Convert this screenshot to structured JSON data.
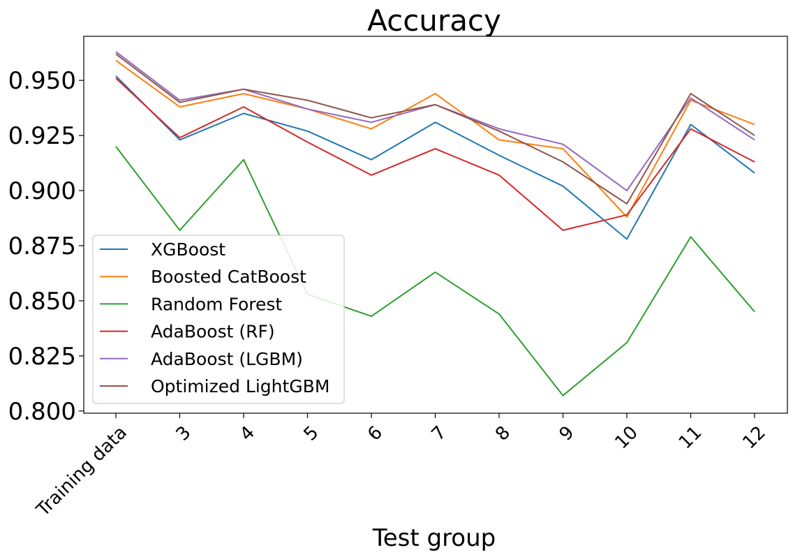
{
  "chart_data": {
    "type": "line",
    "title": "Accuracy",
    "xlabel": "Test group",
    "ylabel": "",
    "ylim": [
      0.799,
      0.97
    ],
    "yticks": [
      "0.800",
      "0.825",
      "0.850",
      "0.875",
      "0.900",
      "0.925",
      "0.950"
    ],
    "categories": [
      "Training data",
      "3",
      "4",
      "5",
      "6",
      "7",
      "8",
      "9",
      "10",
      "11",
      "12"
    ],
    "grid": false,
    "legend_position": "lower-left",
    "series": [
      {
        "name": "XGBoost",
        "color": "#1f77b4",
        "values": [
          0.952,
          0.923,
          0.935,
          0.927,
          0.914,
          0.931,
          0.916,
          0.902,
          0.878,
          0.93,
          0.908
        ]
      },
      {
        "name": "Boosted CatBoost",
        "color": "#ff7f0e",
        "values": [
          0.959,
          0.938,
          0.944,
          0.937,
          0.928,
          0.944,
          0.923,
          0.919,
          0.888,
          0.941,
          0.93
        ]
      },
      {
        "name": "Random Forest",
        "color": "#2ca02c",
        "values": [
          0.92,
          0.882,
          0.914,
          0.853,
          0.843,
          0.863,
          0.844,
          0.807,
          0.831,
          0.879,
          0.845
        ]
      },
      {
        "name": "AdaBoost (RF)",
        "color": "#d62728",
        "values": [
          0.951,
          0.924,
          0.938,
          0.922,
          0.907,
          0.919,
          0.907,
          0.882,
          0.889,
          0.928,
          0.913
        ]
      },
      {
        "name": "AdaBoost (LGBM)",
        "color": "#9467bd",
        "values": [
          0.963,
          0.941,
          0.946,
          0.937,
          0.931,
          0.939,
          0.928,
          0.921,
          0.9,
          0.942,
          0.923
        ]
      },
      {
        "name": "Optimized LightGBM",
        "color": "#8c564b",
        "values": [
          0.962,
          0.94,
          0.946,
          0.941,
          0.933,
          0.939,
          0.927,
          0.913,
          0.894,
          0.944,
          0.925
        ]
      }
    ]
  }
}
